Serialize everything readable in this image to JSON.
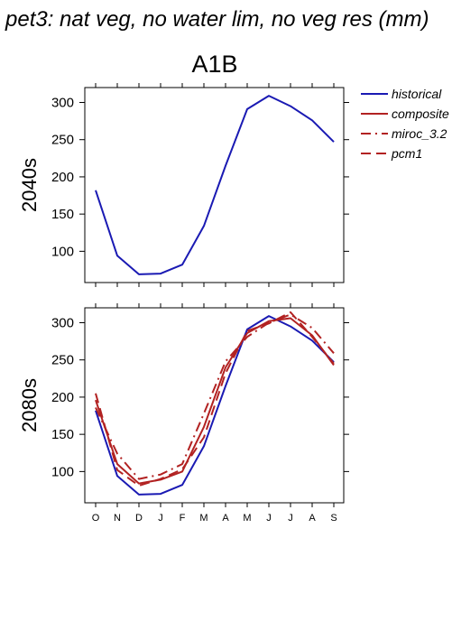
{
  "chart_data": {
    "type": "line",
    "title": "pet3: nat veg, no water lim, no veg res (mm)",
    "scenario": "A1B",
    "months": [
      "O",
      "N",
      "D",
      "J",
      "F",
      "M",
      "A",
      "M",
      "J",
      "J",
      "A",
      "S"
    ],
    "ylim": [
      58,
      320
    ],
    "yticks": [
      100,
      150,
      200,
      250,
      300
    ],
    "legend": {
      "placement": "right",
      "entries": [
        {
          "name": "historical",
          "color": "#1a1ab3",
          "dash": "solid"
        },
        {
          "name": "composite",
          "color": "#b22222",
          "dash": "solid"
        },
        {
          "name": "miroc_3.2",
          "color": "#b22222",
          "dash": "dashdot"
        },
        {
          "name": "pcm1",
          "color": "#b22222",
          "dash": "dashed"
        }
      ]
    },
    "panels": [
      {
        "row_label": "2040s",
        "series": [
          {
            "name": "historical",
            "color": "#1a1ab3",
            "dash": "solid",
            "values": [
              182,
              94,
              69,
              70,
              82,
              134,
              215,
              291,
              309,
              295,
              276,
              247
            ]
          }
        ]
      },
      {
        "row_label": "2080s",
        "series": [
          {
            "name": "historical",
            "color": "#1a1ab3",
            "dash": "solid",
            "values": [
              182,
              94,
              69,
              70,
              82,
              134,
              215,
              291,
              309,
              295,
              276,
              247
            ]
          },
          {
            "name": "composite",
            "color": "#b22222",
            "dash": "solid",
            "values": [
              196,
              110,
              84,
              89,
              100,
              160,
              240,
              286,
              302,
              306,
              283,
              243
            ]
          },
          {
            "name": "miroc_3.2",
            "color": "#b22222",
            "dash": "dashdot",
            "values": [
              186,
              124,
              90,
              96,
              110,
              178,
              248,
              281,
              300,
              311,
              293,
              259
            ]
          },
          {
            "name": "pcm1",
            "color": "#b22222",
            "dash": "dashed",
            "values": [
              205,
              102,
              81,
              90,
              103,
              146,
              232,
              289,
              299,
              314,
              281,
              245
            ]
          }
        ]
      }
    ]
  }
}
